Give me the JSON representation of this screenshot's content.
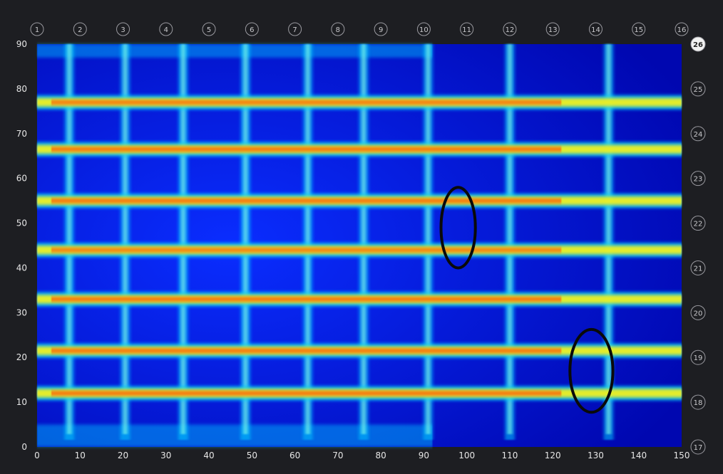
{
  "chart_data": {
    "type": "heatmap",
    "title": "",
    "xlabel": "",
    "ylabel": "",
    "xlim": [
      0,
      150
    ],
    "ylim": [
      0,
      90
    ],
    "x_ticks": [
      0,
      10,
      20,
      30,
      40,
      50,
      60,
      70,
      80,
      90,
      100,
      110,
      120,
      130,
      140,
      150
    ],
    "y_ticks": [
      0,
      10,
      20,
      30,
      40,
      50,
      60,
      70,
      80,
      90
    ],
    "top_grid_labels": [
      "1",
      "2",
      "3",
      "4",
      "5",
      "6",
      "7",
      "8",
      "9",
      "10",
      "11",
      "12",
      "13",
      "14",
      "15",
      "16"
    ],
    "right_grid_labels": [
      {
        "label": "26",
        "y": 90,
        "highlighted": true
      },
      {
        "label": "25",
        "y": 80
      },
      {
        "label": "24",
        "y": 70
      },
      {
        "label": "23",
        "y": 60
      },
      {
        "label": "22",
        "y": 50
      },
      {
        "label": "21",
        "y": 40
      },
      {
        "label": "20",
        "y": 30
      },
      {
        "label": "19",
        "y": 20
      },
      {
        "label": "18",
        "y": 10
      },
      {
        "label": "17",
        "y": 0
      }
    ],
    "horizontal_bars": [
      {
        "y": 77,
        "intensity": 0.9
      },
      {
        "y": 66.5,
        "intensity": 0.95
      },
      {
        "y": 55,
        "intensity": 0.95
      },
      {
        "y": 44,
        "intensity": 0.85
      },
      {
        "y": 33,
        "intensity": 0.95
      },
      {
        "y": 21.5,
        "intensity": 0.95
      },
      {
        "y": 12,
        "intensity": 0.95
      }
    ],
    "vertical_bars": [
      {
        "x": 7.5,
        "intensity": 0.55
      },
      {
        "x": 20.5,
        "intensity": 0.5
      },
      {
        "x": 34,
        "intensity": 0.55
      },
      {
        "x": 48.5,
        "intensity": 0.55
      },
      {
        "x": 63,
        "intensity": 0.5
      },
      {
        "x": 76,
        "intensity": 0.5
      },
      {
        "x": 91,
        "intensity": 0.5
      },
      {
        "x": 110,
        "intensity": 0.55
      },
      {
        "x": 133,
        "intensity": 0.55
      }
    ],
    "annotations": [
      {
        "shape": "ellipse",
        "x_center": 98,
        "y_center": 49,
        "x_range": [
          94,
          102
        ],
        "y_range": [
          40,
          58
        ]
      },
      {
        "shape": "ellipse",
        "x_center": 129,
        "y_center": 17,
        "x_range": [
          124,
          134
        ],
        "y_range": [
          7.5,
          26
        ]
      }
    ],
    "colormap": [
      "#0008b4",
      "#0030ff",
      "#00c8ff",
      "#f0f020",
      "#ff3800"
    ]
  }
}
